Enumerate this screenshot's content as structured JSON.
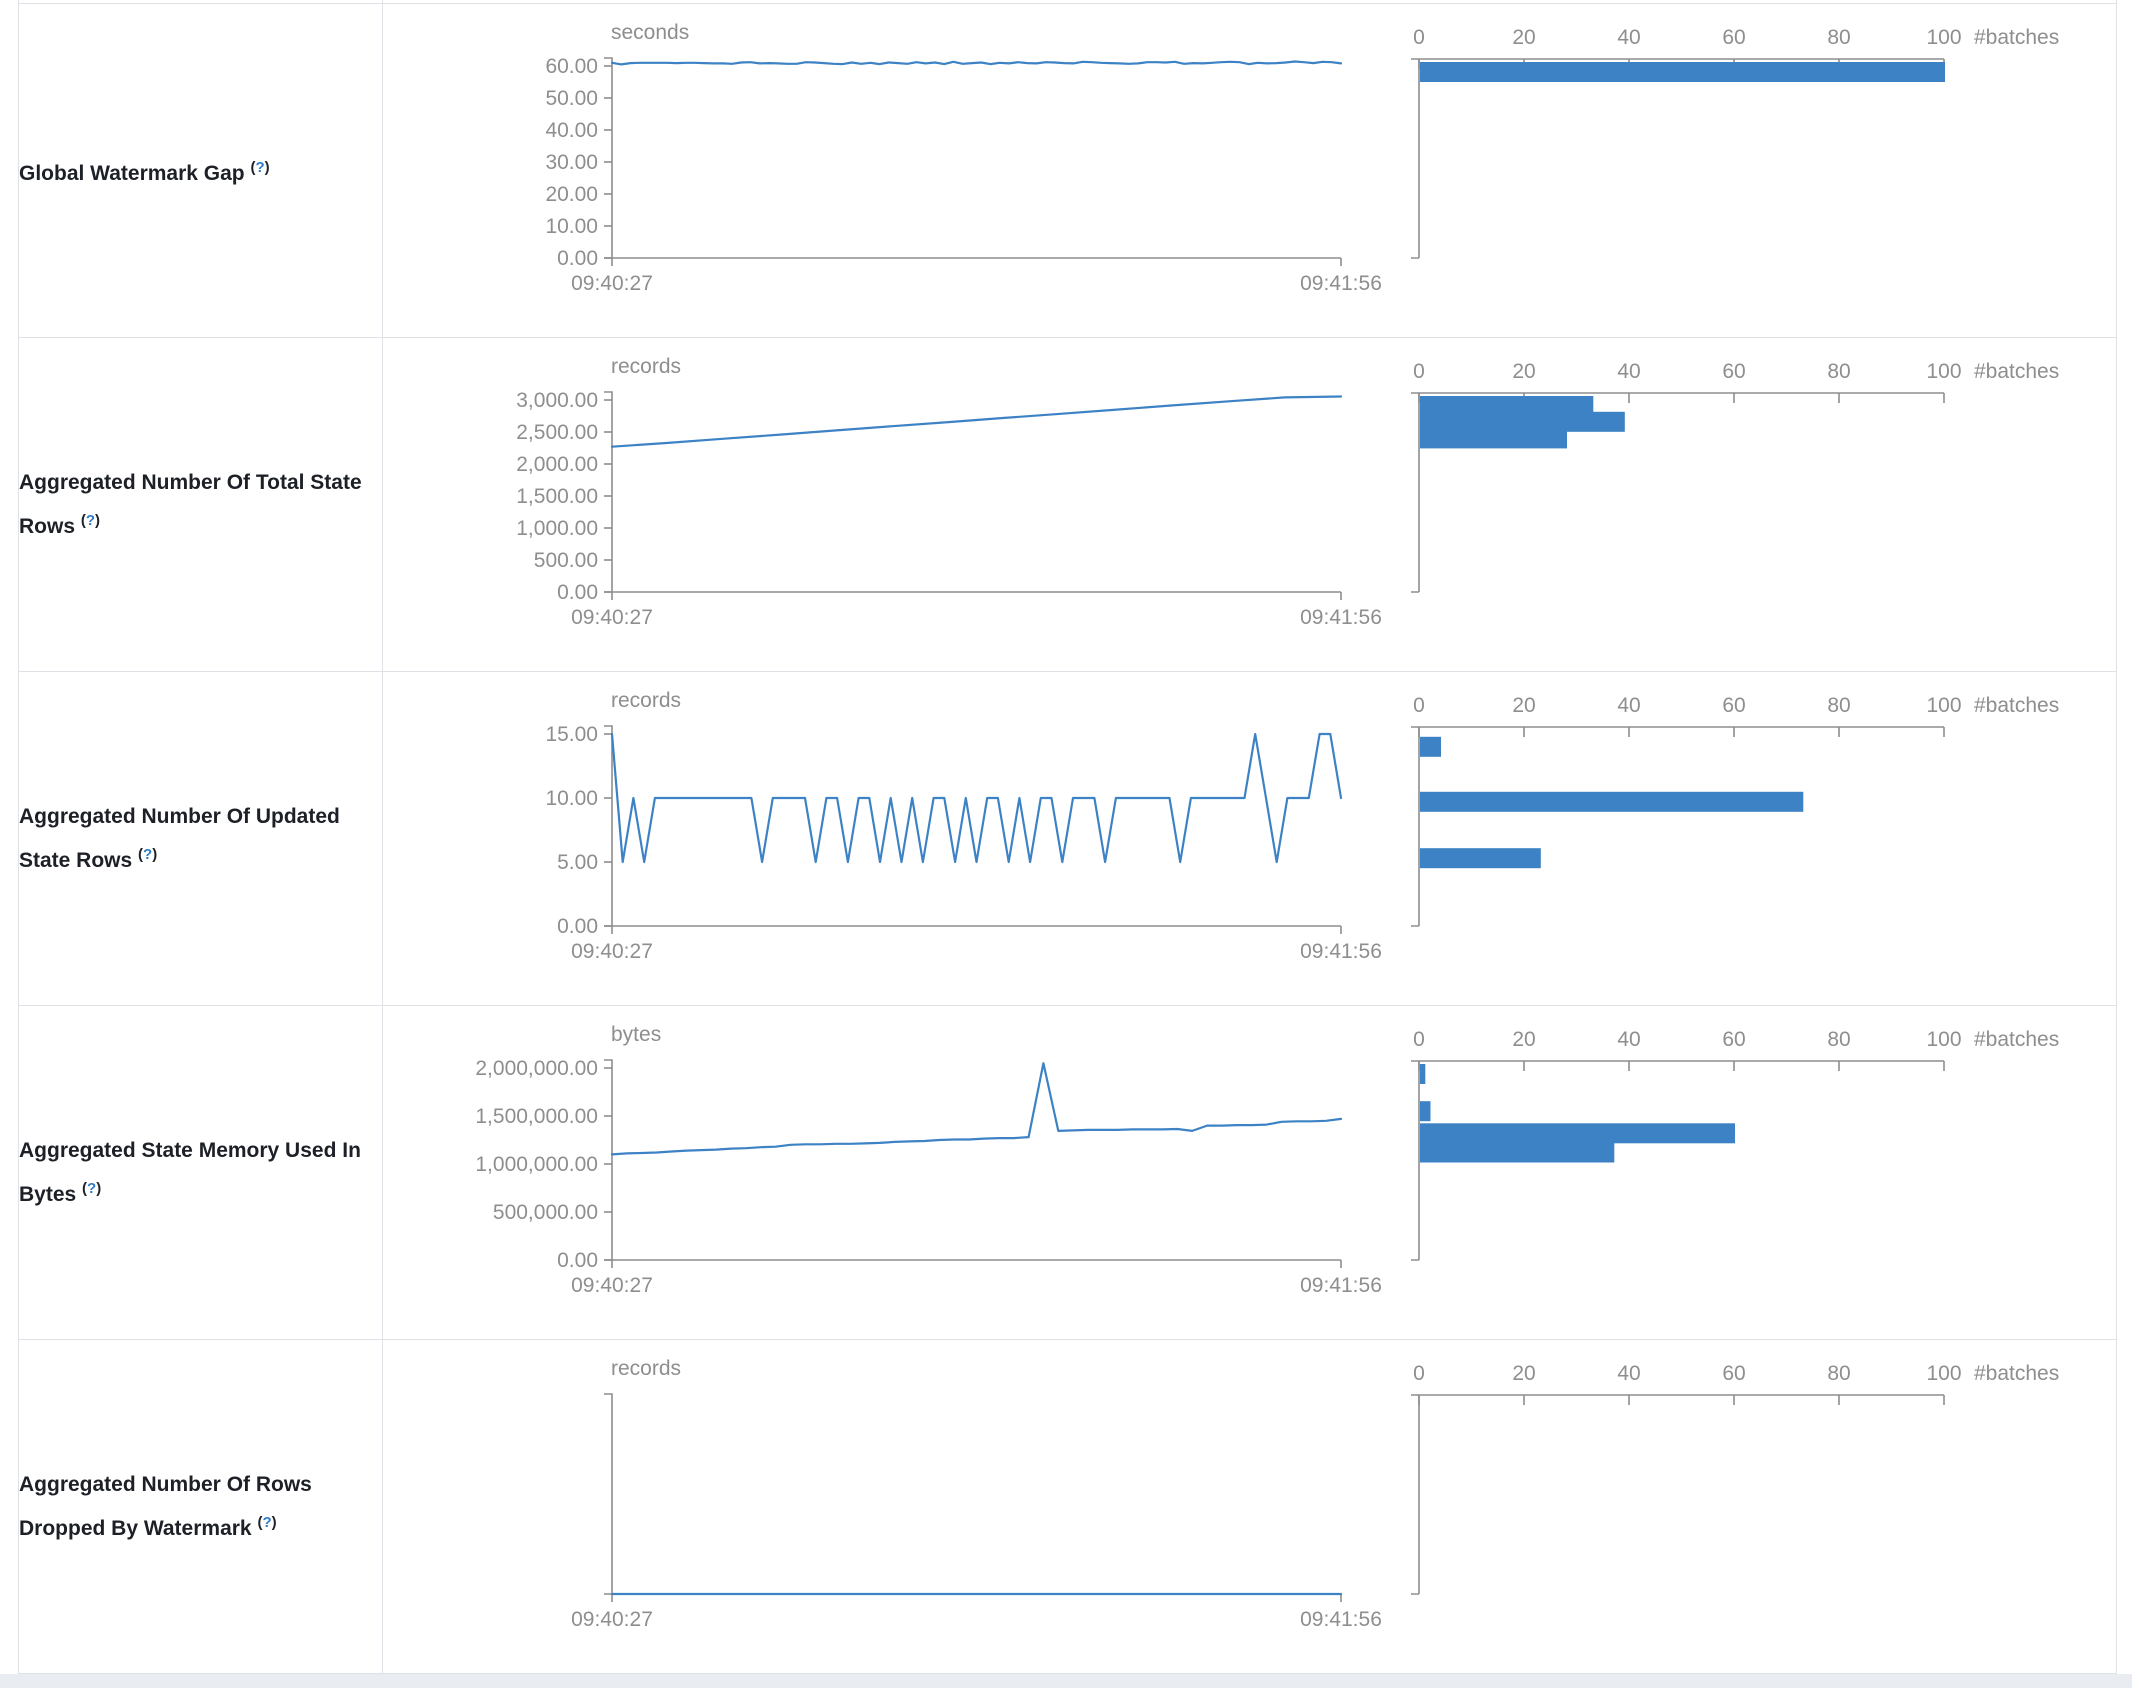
{
  "colors": {
    "accent": "#3c82c4",
    "axis_gray": "#8e8e8e",
    "label_text": "#1d2127",
    "help_link": "#2e7cc9",
    "border": "#dee2e6"
  },
  "table": {
    "x_labels": [
      "09:40:27",
      "09:41:56"
    ],
    "hist_axis": {
      "ticks": [
        "0",
        "20",
        "40",
        "60",
        "80",
        "100"
      ],
      "tick_values": [
        0,
        20,
        40,
        60,
        80,
        100
      ],
      "unit": "#batches"
    },
    "help_marker": {
      "open": "(",
      "q": "?",
      "close": ")"
    }
  },
  "chart_data": [
    {
      "type": "line",
      "row_label": "Global Watermark Gap",
      "unit": "seconds",
      "xlabel_start": "09:40:27",
      "xlabel_end": "09:41:56",
      "y_tick_labels": [
        "60.00",
        "50.00",
        "40.00",
        "30.00",
        "20.00",
        "10.00",
        "0.00"
      ],
      "y_top_value": 60,
      "ylim": [
        0,
        63
      ],
      "series": [
        61,
        60.5,
        60.9,
        61,
        61,
        61,
        61,
        60.9,
        61,
        61,
        60.9,
        60.8,
        60.8,
        60.7,
        61.1,
        61.2,
        60.8,
        60.9,
        60.8,
        60.7,
        60.7,
        61.2,
        61.1,
        60.9,
        60.7,
        60.6,
        61.1,
        60.7,
        61,
        60.6,
        61.1,
        60.9,
        60.7,
        61.2,
        60.8,
        61.1,
        60.6,
        61.3,
        60.7,
        60.9,
        61.1,
        60.6,
        61,
        60.8,
        61.2,
        60.9,
        60.8,
        61.2,
        61.1,
        60.9,
        60.8,
        61.3,
        61.2,
        61,
        60.9,
        60.8,
        60.7,
        60.8,
        61.2,
        61.2,
        61.1,
        61.3,
        60.7,
        60.9,
        60.8,
        61,
        61.2,
        61.3,
        61.2,
        60.6,
        61,
        60.8,
        60.9,
        61.1,
        61.4,
        61.2,
        60.9,
        61.3,
        61.2,
        60.8
      ],
      "histogram": {
        "type": "bar",
        "unit": "#batches",
        "xlim": [
          0,
          100
        ],
        "bins": [
          {
            "value": 61,
            "count": 100
          }
        ]
      }
    },
    {
      "type": "line",
      "row_label": "Aggregated Number Of Total State Rows",
      "unit": "records",
      "xlabel_start": "09:40:27",
      "xlabel_end": "09:41:56",
      "y_tick_labels": [
        "3,000.00",
        "2,500.00",
        "2,000.00",
        "1,500.00",
        "1,000.00",
        "500.00",
        "0.00"
      ],
      "y_top_value": 3000,
      "ylim": [
        0,
        3150
      ],
      "series": [
        2270,
        2330,
        2395,
        2460,
        2525,
        2590,
        2655,
        2720,
        2785,
        2850,
        2915,
        2980,
        3040,
        3055
      ],
      "histogram": {
        "type": "bar",
        "unit": "#batches",
        "xlim": [
          0,
          100
        ],
        "bins": [
          {
            "value": 2920,
            "count": 33
          },
          {
            "value": 2660,
            "count": 39
          },
          {
            "value": 2400,
            "count": 28
          }
        ]
      }
    },
    {
      "type": "line",
      "row_label": "Aggregated Number Of Updated State Rows",
      "unit": "records",
      "xlabel_start": "09:40:27",
      "xlabel_end": "09:41:56",
      "y_tick_labels": [
        "15.00",
        "10.00",
        "5.00",
        "0.00"
      ],
      "y_top_value": 15,
      "ylim": [
        0,
        15
      ],
      "series": [
        15,
        5,
        10,
        5,
        10,
        10,
        10,
        10,
        10,
        10,
        10,
        10,
        10,
        10,
        5,
        10,
        10,
        10,
        10,
        5,
        10,
        10,
        5,
        10,
        10,
        5,
        10,
        5,
        10,
        5,
        10,
        10,
        5,
        10,
        5,
        10,
        10,
        5,
        10,
        5,
        10,
        10,
        5,
        10,
        10,
        10,
        5,
        10,
        10,
        10,
        10,
        10,
        10,
        5,
        10,
        10,
        10,
        10,
        10,
        10,
        15,
        10,
        5,
        10,
        10,
        10,
        15,
        15,
        10
      ],
      "histogram": {
        "type": "bar",
        "unit": "#batches",
        "xlim": [
          0,
          100
        ],
        "bins": [
          {
            "value": 14,
            "count": 4
          },
          {
            "value": 9.7,
            "count": 73
          },
          {
            "value": 5.3,
            "count": 23
          }
        ]
      }
    },
    {
      "type": "line",
      "row_label": "Aggregated State Memory Used In Bytes",
      "unit": "bytes",
      "xlabel_start": "09:40:27",
      "xlabel_end": "09:41:56",
      "y_tick_labels": [
        "2,000,000.00",
        "1,500,000.00",
        "1,000,000.00",
        "500,000.00",
        "0.00"
      ],
      "y_top_value": 2000000,
      "ylim": [
        0,
        2100000
      ],
      "series": [
        1100000,
        1110000,
        1115000,
        1120000,
        1130000,
        1140000,
        1145000,
        1150000,
        1160000,
        1165000,
        1175000,
        1180000,
        1200000,
        1205000,
        1205000,
        1210000,
        1210000,
        1215000,
        1220000,
        1230000,
        1235000,
        1240000,
        1250000,
        1255000,
        1255000,
        1265000,
        1270000,
        1270000,
        1280000,
        2050000,
        1345000,
        1350000,
        1355000,
        1355000,
        1355000,
        1360000,
        1360000,
        1360000,
        1365000,
        1345000,
        1400000,
        1400000,
        1405000,
        1405000,
        1410000,
        1440000,
        1445000,
        1445000,
        1450000,
        1470000
      ],
      "histogram": {
        "type": "bar",
        "unit": "#batches",
        "xlim": [
          0,
          100
        ],
        "bins": [
          {
            "value": 2000000,
            "count": 1
          },
          {
            "value": 1550000,
            "count": 2
          },
          {
            "value": 1320000,
            "count": 60
          },
          {
            "value": 1120000,
            "count": 37
          }
        ]
      }
    },
    {
      "type": "line",
      "row_label": "Aggregated Number Of Rows Dropped By Watermark",
      "unit": "records",
      "xlabel_start": "09:40:27",
      "xlabel_end": "09:41:56",
      "y_tick_labels": [],
      "y_top_value": 1,
      "ylim": [
        0,
        1
      ],
      "series": [
        0,
        0
      ],
      "histogram": {
        "type": "bar",
        "unit": "#batches",
        "xlim": [
          0,
          100
        ],
        "bins": []
      }
    }
  ]
}
